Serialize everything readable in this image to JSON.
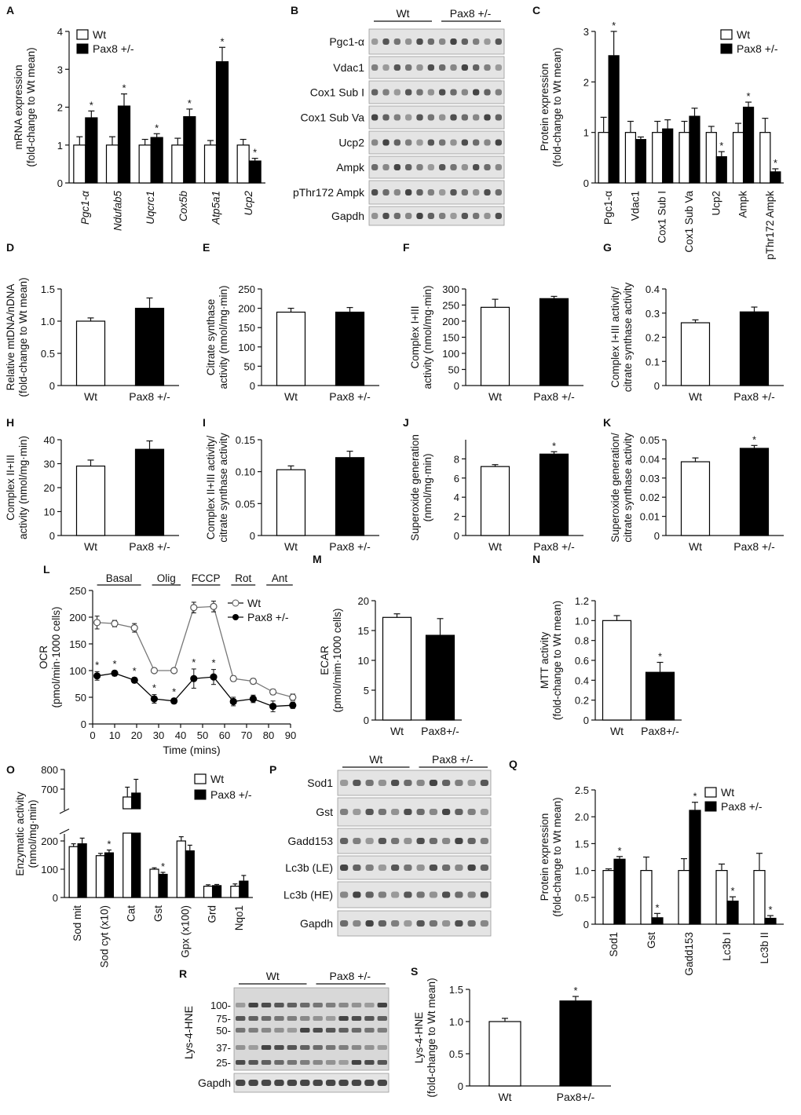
{
  "figure": {
    "legend_wt": "Wt",
    "legend_pax8": "Pax8 +/-",
    "legend_pax8_nospace": "Pax8+/-"
  },
  "chart_data": [
    {
      "panel": "A",
      "type": "bar",
      "grouped": true,
      "italic_categories": true,
      "categories": [
        "Pgc1-α",
        "Ndufab5",
        "Uqcrc1",
        "Cox5b",
        "Atp5a1",
        "Ucp2"
      ],
      "series": [
        {
          "name": "Wt",
          "values": [
            1,
            1,
            1,
            1,
            1,
            1
          ],
          "errors": [
            0.22,
            0.22,
            0.15,
            0.18,
            0.12,
            0.15
          ]
        },
        {
          "name": "Pax8 +/-",
          "values": [
            1.72,
            2.03,
            1.2,
            1.75,
            3.2,
            0.58
          ],
          "errors": [
            0.18,
            0.32,
            0.1,
            0.2,
            0.38,
            0.07
          ]
        }
      ],
      "stars": [
        false,
        true,
        false,
        true,
        false,
        true,
        false,
        true,
        false,
        true,
        false,
        true
      ],
      "ylabel": [
        "mRNA expression",
        "(fold-change to Wt mean)"
      ],
      "ylim": [
        0,
        4
      ],
      "yticks": [
        0,
        1,
        2,
        3,
        4
      ]
    },
    {
      "panel": "C",
      "type": "bar",
      "grouped": true,
      "categories": [
        "Pgc1-α",
        "Vdac1",
        "Cox1 Sub I",
        "Cox1 Sub Va",
        "Ucp2",
        "Ampk",
        "pThr172 Ampk"
      ],
      "series": [
        {
          "name": "Wt",
          "values": [
            1,
            1,
            1,
            1,
            1,
            1,
            1
          ],
          "errors": [
            0.3,
            0.22,
            0.22,
            0.22,
            0.12,
            0.18,
            0.28
          ]
        },
        {
          "name": "Pax8 +/-",
          "values": [
            2.52,
            0.86,
            1.07,
            1.32,
            0.52,
            1.5,
            0.22
          ],
          "errors": [
            0.48,
            0.05,
            0.18,
            0.16,
            0.1,
            0.1,
            0.06
          ]
        }
      ],
      "stars": [
        false,
        true,
        false,
        false,
        false,
        false,
        false,
        false,
        false,
        true,
        false,
        true,
        false,
        true
      ],
      "ylabel": [
        "Protein expression",
        "(fold-change to Wt mean)"
      ],
      "ylim": [
        0,
        3
      ],
      "yticks": [
        0,
        1,
        2,
        3
      ]
    },
    {
      "panel": "D",
      "type": "bar",
      "categories": [
        "Wt",
        "Pax8 +/-"
      ],
      "values": [
        1.0,
        1.2
      ],
      "errors": [
        0.05,
        0.16
      ],
      "stars": [
        false,
        false
      ],
      "ylabel": [
        "Relative mtDNA/nDNA",
        "(fold-change to Wt mean)"
      ],
      "ylim": [
        0,
        1.5
      ],
      "yticks": [
        0,
        0.5,
        1.0,
        1.5
      ],
      "yticklabels": [
        "0",
        "0.5",
        "1.0",
        "1.5"
      ]
    },
    {
      "panel": "E",
      "type": "bar",
      "categories": [
        "Wt",
        "Pax8 +/-"
      ],
      "values": [
        190,
        190
      ],
      "errors": [
        10,
        12
      ],
      "stars": [
        false,
        false
      ],
      "ylabel": [
        "Citrate synthase",
        "activity (nmol/mg·min)"
      ],
      "ylim": [
        0,
        250
      ],
      "yticks": [
        0,
        50,
        100,
        150,
        200,
        250
      ]
    },
    {
      "panel": "F",
      "type": "bar",
      "categories": [
        "Wt",
        "Pax8 +/-"
      ],
      "values": [
        243,
        270
      ],
      "errors": [
        25,
        7
      ],
      "stars": [
        false,
        false
      ],
      "ylabel": [
        "Complex I+III",
        "activity (nmol/mg·min)"
      ],
      "ylim": [
        0,
        300
      ],
      "yticks": [
        0,
        50,
        100,
        150,
        200,
        250,
        300
      ]
    },
    {
      "panel": "G",
      "type": "bar",
      "categories": [
        "Wt",
        "Pax8 +/-"
      ],
      "values": [
        0.26,
        0.305
      ],
      "errors": [
        0.012,
        0.02
      ],
      "stars": [
        false,
        false
      ],
      "ylabel": [
        "Complex I+III activity/",
        "citrate synthase activity"
      ],
      "ylim": [
        0,
        0.4
      ],
      "yticks": [
        0,
        0.1,
        0.2,
        0.3,
        0.4
      ],
      "yticklabels": [
        "0",
        "0.1",
        "0.2",
        "0.3",
        "0.4"
      ]
    },
    {
      "panel": "H",
      "type": "bar",
      "categories": [
        "Wt",
        "Pax8 +/-"
      ],
      "values": [
        29,
        36
      ],
      "errors": [
        2.5,
        3.5
      ],
      "stars": [
        false,
        false
      ],
      "ylabel": [
        "Complex II+III",
        "activity (nmol/mg·min)"
      ],
      "ylim": [
        0,
        40
      ],
      "yticks": [
        0,
        10,
        20,
        30,
        40
      ]
    },
    {
      "panel": "I",
      "type": "bar",
      "categories": [
        "Wt",
        "Pax8 +/-"
      ],
      "values": [
        0.103,
        0.122
      ],
      "errors": [
        0.006,
        0.01
      ],
      "stars": [
        false,
        false
      ],
      "ylabel": [
        "Complex II+III activity/",
        "citrate synthase activity"
      ],
      "ylim": [
        0,
        0.15
      ],
      "yticks": [
        0,
        0.05,
        0.1,
        0.15
      ],
      "yticklabels": [
        "0",
        "0.05",
        "0.10",
        "0.15"
      ]
    },
    {
      "panel": "J",
      "type": "bar",
      "categories": [
        "Wt",
        "Pax8 +/-"
      ],
      "values": [
        7.2,
        8.5
      ],
      "errors": [
        0.2,
        0.25
      ],
      "stars": [
        false,
        true
      ],
      "ylabel": [
        "Superoxide generation",
        "(nmol/mg·min)"
      ],
      "ylim": [
        0,
        10
      ],
      "yticks": [
        0,
        2,
        4,
        6,
        8
      ]
    },
    {
      "panel": "K",
      "type": "bar",
      "categories": [
        "Wt",
        "Pax8 +/-"
      ],
      "values": [
        0.0385,
        0.0455
      ],
      "errors": [
        0.002,
        0.0015
      ],
      "stars": [
        false,
        true
      ],
      "ylabel": [
        "Superoxide generation/",
        "citrate synthase activity"
      ],
      "ylim": [
        0,
        0.05
      ],
      "yticks": [
        0,
        0.01,
        0.02,
        0.03,
        0.04,
        0.05
      ],
      "yticklabels": [
        "0",
        "0.01",
        "0.02",
        "0.03",
        "0.04",
        "0.05"
      ]
    },
    {
      "panel": "L",
      "type": "line",
      "xlabel": "Time (mins)",
      "ylabel": [
        "OCR",
        "(pmol/min·1000 cells)"
      ],
      "xlim": [
        0,
        90
      ],
      "xticks": [
        0,
        10,
        20,
        30,
        40,
        50,
        60,
        70,
        80,
        90
      ],
      "ylim": [
        0,
        250
      ],
      "yticks": [
        0,
        50,
        100,
        150,
        200,
        250
      ],
      "phases": [
        "Basal",
        "Olig",
        "FCCP",
        "Rot",
        "Ant"
      ],
      "x": [
        2,
        10,
        19,
        28,
        37,
        46,
        55,
        64,
        73,
        82,
        91
      ],
      "series": [
        {
          "name": "Wt",
          "values": [
            190,
            188,
            180,
            100,
            100,
            218,
            220,
            85,
            80,
            60,
            50
          ],
          "errors": [
            12,
            6,
            8,
            3,
            3,
            10,
            10,
            5,
            5,
            5,
            6
          ]
        },
        {
          "name": "Pax8 +/-",
          "values": [
            90,
            95,
            82,
            47,
            43,
            85,
            88,
            42,
            47,
            33,
            35
          ],
          "errors": [
            8,
            5,
            5,
            8,
            5,
            18,
            14,
            8,
            7,
            10,
            6
          ]
        }
      ],
      "stars": [
        true,
        true,
        true,
        true,
        true,
        true,
        true,
        false,
        false,
        false,
        false
      ]
    },
    {
      "panel": "M",
      "type": "bar",
      "categories": [
        "Wt",
        "Pax8+/-"
      ],
      "values": [
        17.2,
        14.2
      ],
      "errors": [
        0.6,
        2.8
      ],
      "stars": [
        false,
        false
      ],
      "ylabel": [
        "ECAR",
        "(pmol/mim·1000 cells)"
      ],
      "ylim": [
        0,
        20
      ],
      "yticks": [
        0,
        5,
        10,
        15,
        20
      ]
    },
    {
      "panel": "N",
      "type": "bar",
      "categories": [
        "Wt",
        "Pax8+/-"
      ],
      "values": [
        1.0,
        0.48
      ],
      "errors": [
        0.05,
        0.1
      ],
      "stars": [
        false,
        true
      ],
      "ylabel": [
        "MTT activity",
        "(fold-change to Wt mean)"
      ],
      "ylim": [
        0,
        1.2
      ],
      "yticks": [
        0,
        0.2,
        0.4,
        0.6,
        0.8,
        1.0,
        1.2
      ],
      "yticklabels": [
        "0",
        "0.2",
        "0.4",
        "0.6",
        "0.8",
        "1.0",
        "1.2"
      ]
    },
    {
      "panel": "O",
      "type": "bar",
      "grouped": true,
      "broken_axis": true,
      "categories": [
        "Sod mit",
        "Sod cyt (x10)",
        "Cat",
        "Gst",
        "Gpx (x100)",
        "Grd",
        "Nqo1"
      ],
      "series": [
        {
          "name": "Wt",
          "values": [
            180,
            148,
            660,
            100,
            200,
            40,
            40
          ],
          "errors": [
            10,
            8,
            50,
            5,
            15,
            5,
            8
          ]
        },
        {
          "name": "Pax8 +/-",
          "values": [
            190,
            158,
            680,
            82,
            165,
            42,
            58
          ],
          "errors": [
            20,
            10,
            70,
            7,
            20,
            4,
            20
          ]
        }
      ],
      "stars": [
        false,
        false,
        false,
        true,
        false,
        false,
        false,
        true,
        false,
        false,
        false,
        false,
        false,
        false
      ],
      "ylabel": [
        "Enzymatic activity",
        "(nmol/mg·min)"
      ],
      "yticks": [
        0,
        100,
        200,
        700,
        800
      ]
    },
    {
      "panel": "Q",
      "type": "bar",
      "grouped": true,
      "categories": [
        "Sod1",
        "Gst",
        "Gadd153",
        "Lc3b I",
        "Lc3b II"
      ],
      "series": [
        {
          "name": "Wt",
          "values": [
            1,
            1,
            1,
            1,
            1
          ],
          "errors": [
            0.03,
            0.25,
            0.22,
            0.12,
            0.32
          ]
        },
        {
          "name": "Pax8 +/-",
          "values": [
            1.21,
            0.12,
            2.12,
            0.43,
            0.11
          ],
          "errors": [
            0.05,
            0.08,
            0.15,
            0.08,
            0.05
          ]
        }
      ],
      "stars": [
        false,
        true,
        false,
        true,
        false,
        true,
        false,
        true,
        false,
        true
      ],
      "ylabel": [
        "Protein expression",
        "(fold-change to Wt mean)"
      ],
      "ylim": [
        0,
        2.5
      ],
      "yticks": [
        0,
        0.5,
        1.0,
        1.5,
        2.0,
        2.5
      ],
      "yticklabels": [
        "0",
        "0.5",
        "1.0",
        "1.5",
        "2.0",
        "2.5"
      ]
    },
    {
      "panel": "S",
      "type": "bar",
      "categories": [
        "Wt",
        "Pax8+/-"
      ],
      "values": [
        1.0,
        1.32
      ],
      "errors": [
        0.05,
        0.07
      ],
      "stars": [
        false,
        true
      ],
      "ylabel": [
        "Lys-4-HNE",
        "(fold-change to Wt mean)"
      ],
      "ylim": [
        0,
        1.5
      ],
      "yticks": [
        0,
        0.5,
        1.0,
        1.5
      ],
      "yticklabels": [
        "0",
        "0.5",
        "1.0",
        "1.5"
      ]
    }
  ],
  "blots": [
    {
      "panel": "B",
      "group_left": "Wt",
      "group_right": "Pax8 +/-",
      "rows": [
        "Pgc1-α",
        "Vdac1",
        "Cox1 Sub I",
        "Cox1 Sub Va",
        "Ucp2",
        "Ampk",
        "pThr172 Ampk",
        "Gapdh"
      ]
    },
    {
      "panel": "P",
      "group_left": "Wt",
      "group_right": "Pax8 +/-",
      "rows": [
        "Sod1",
        "Gst",
        "Gadd153",
        "Lc3b (LE)",
        "Lc3b (HE)",
        "Gapdh"
      ]
    },
    {
      "panel": "R",
      "group_left": "Wt",
      "group_right": "Pax8 +/-",
      "side_label": "Lys-4-HNE",
      "markers": [
        "100-",
        "75-",
        "50-",
        "37-",
        "25-"
      ],
      "rows": [
        "Gapdh"
      ]
    }
  ]
}
